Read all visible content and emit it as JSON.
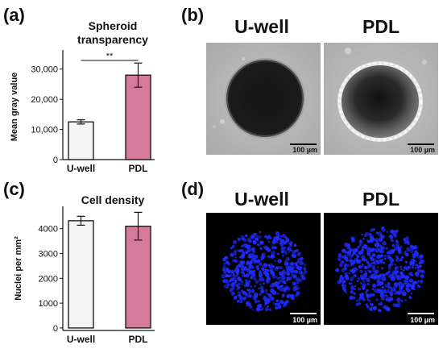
{
  "panels": {
    "a": {
      "letter": "(a)"
    },
    "b": {
      "letter": "(b)",
      "titles": [
        "U-well",
        "PDL"
      ],
      "scalebar_label": "100 µm"
    },
    "c": {
      "letter": "(c)"
    },
    "d": {
      "letter": "(d)",
      "titles": [
        "U-well",
        "PDL"
      ],
      "scalebar_label": "100 µm"
    }
  },
  "colors": {
    "uwell_bar": "#f4f4f4",
    "pdl_bar": "#d57a9a",
    "nuclei": "#1f2bff"
  },
  "chart_data": [
    {
      "type": "bar",
      "title": "Spheroid transparency",
      "title_lines": [
        "Spheroid",
        "transparency"
      ],
      "ylabel": "Mean gray value",
      "xlabel": "",
      "categories": [
        "U-well",
        "PDL"
      ],
      "values": [
        12500,
        28000
      ],
      "errors": [
        700,
        4000
      ],
      "ylim": [
        0,
        35000
      ],
      "yticks": [
        0,
        10000,
        20000,
        30000
      ],
      "ytick_labels": [
        "0",
        "10,000",
        "20,000",
        "30,000"
      ],
      "significance": {
        "label": "**",
        "between": [
          "U-well",
          "PDL"
        ]
      },
      "grid": false
    },
    {
      "type": "bar",
      "title": "Cell density",
      "ylabel": "Nuclei per mm²",
      "xlabel": "",
      "categories": [
        "U-well",
        "PDL"
      ],
      "values": [
        4320,
        4100
      ],
      "errors": [
        180,
        560
      ],
      "ylim": [
        -100,
        4900
      ],
      "yticks": [
        0,
        1000,
        2000,
        3000,
        4000
      ],
      "ytick_labels": [
        "0",
        "1000",
        "2000",
        "3000",
        "4000"
      ],
      "grid": false
    }
  ]
}
